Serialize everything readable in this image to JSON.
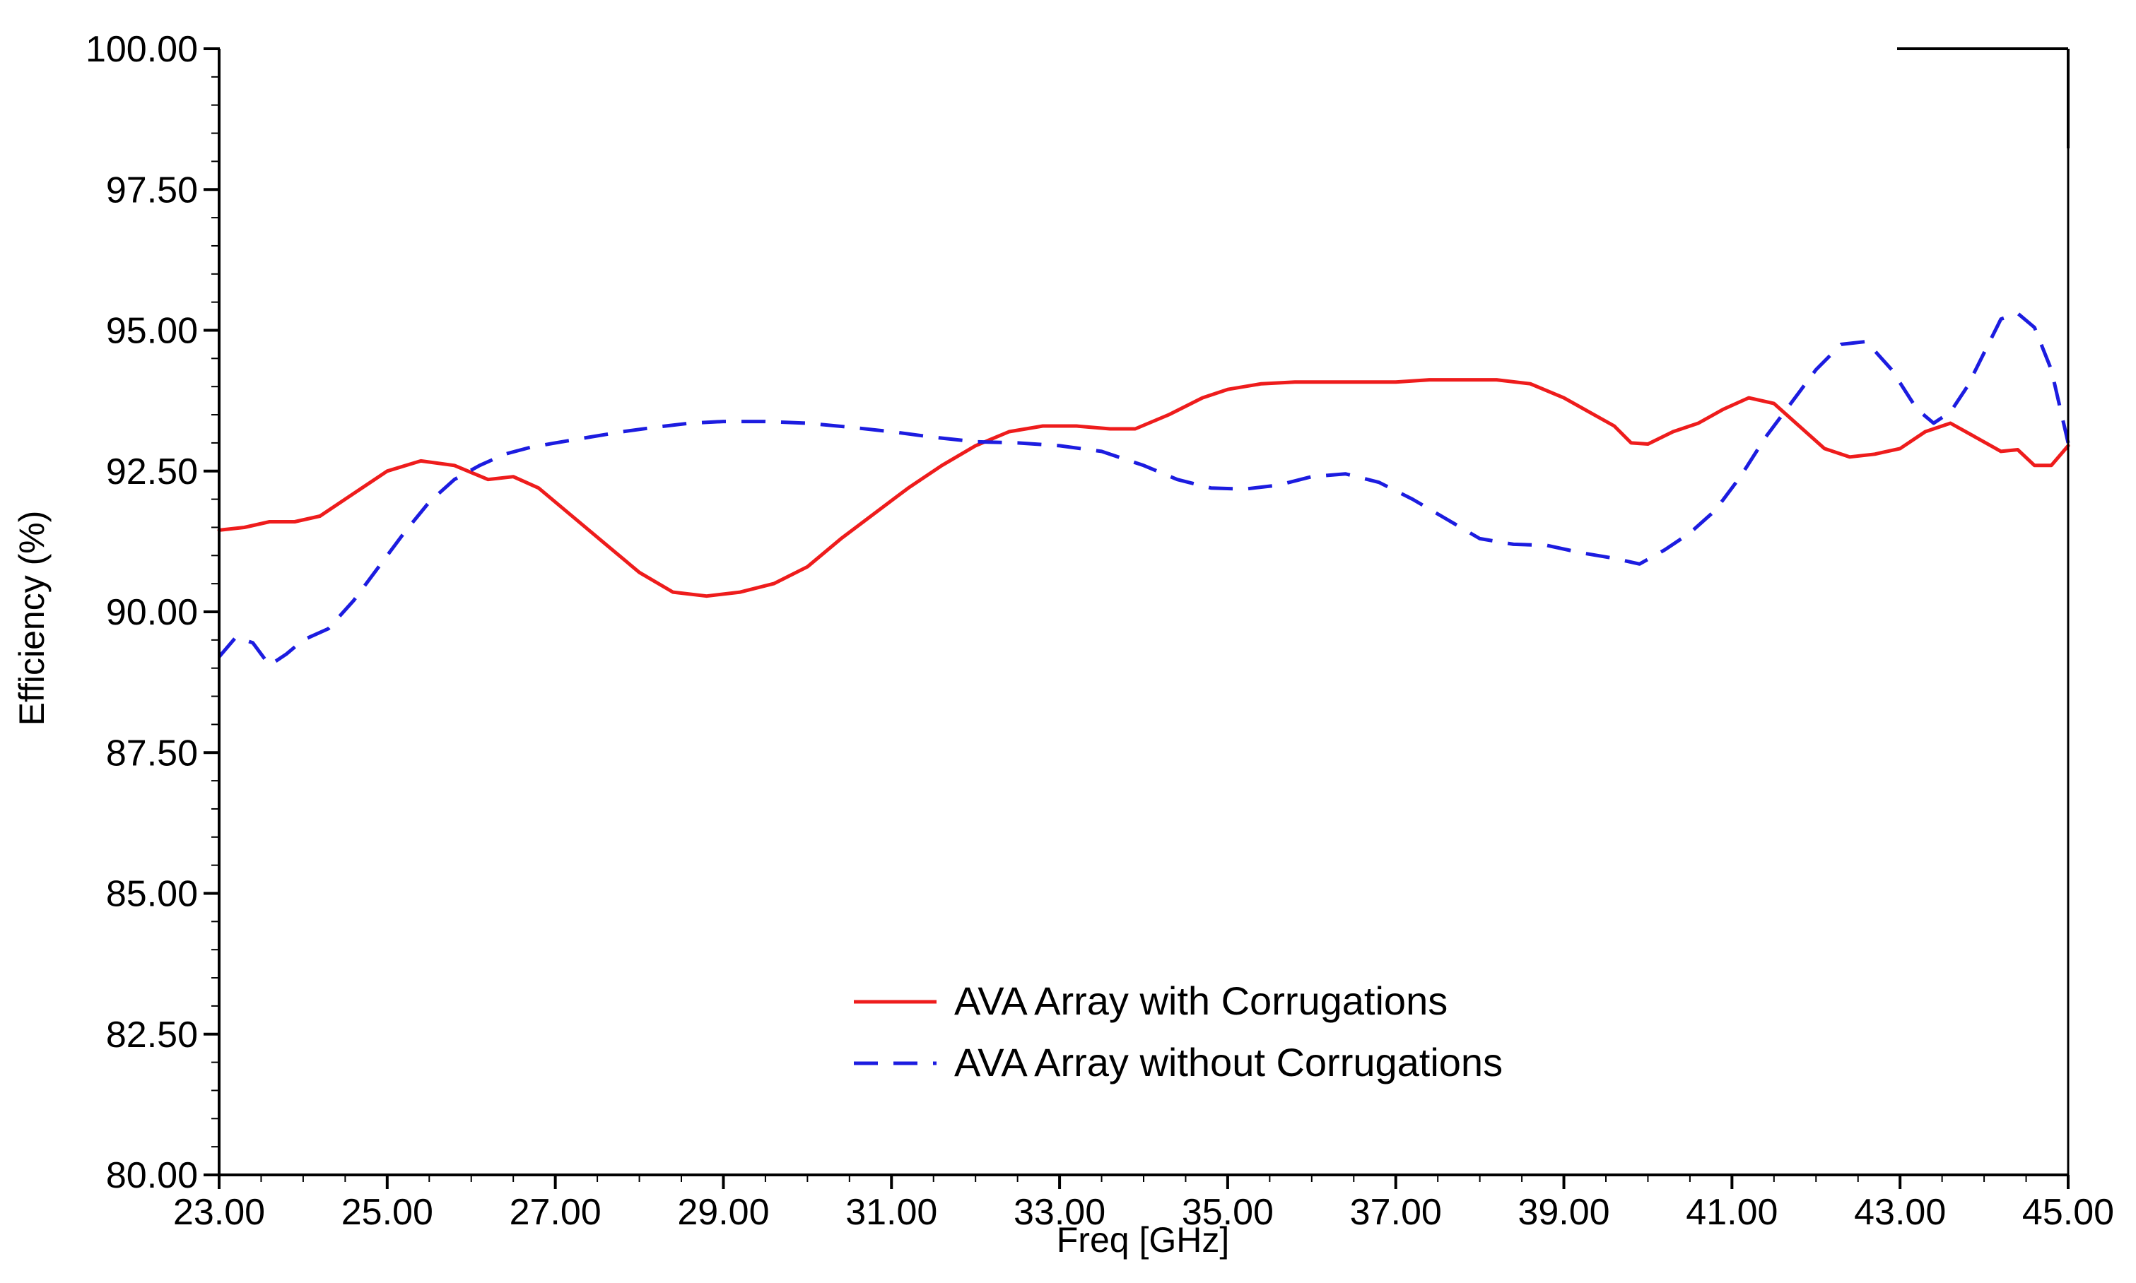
{
  "chart_data": {
    "type": "line",
    "title": "",
    "xlabel": "Freq [GHz]",
    "ylabel": "Efficiency (%)",
    "xlim": [
      23.0,
      45.0
    ],
    "ylim": [
      80.0,
      100.0
    ],
    "xticks": [
      23,
      25,
      27,
      29,
      31,
      33,
      35,
      37,
      39,
      41,
      43,
      45
    ],
    "yticks": [
      80,
      82.5,
      85,
      87.5,
      90,
      92.5,
      95,
      97.5,
      100
    ],
    "xtick_labels": [
      "23.00",
      "25.00",
      "27.00",
      "29.00",
      "31.00",
      "33.00",
      "35.00",
      "37.00",
      "39.00",
      "41.00",
      "43.00",
      "45.00"
    ],
    "ytick_labels": [
      "80.00",
      "82.50",
      "85.00",
      "87.50",
      "90.00",
      "92.50",
      "95.00",
      "97.50",
      "100.00"
    ],
    "grid": false,
    "legend_position": "bottom-center",
    "series": [
      {
        "name": "AVA Array with Corrugations",
        "color": "#ee1c1c",
        "dash": "solid",
        "x": [
          23.0,
          23.3,
          23.6,
          23.9,
          24.2,
          24.6,
          25.0,
          25.4,
          25.8,
          26.2,
          26.5,
          26.8,
          27.2,
          27.6,
          28.0,
          28.4,
          28.8,
          29.2,
          29.6,
          30.0,
          30.4,
          30.8,
          31.2,
          31.6,
          32.0,
          32.4,
          32.8,
          33.2,
          33.6,
          33.9,
          34.3,
          34.7,
          35.0,
          35.4,
          35.8,
          36.2,
          36.6,
          37.0,
          37.4,
          37.8,
          38.2,
          38.6,
          39.0,
          39.3,
          39.6,
          39.8,
          40.0,
          40.3,
          40.6,
          40.9,
          41.2,
          41.5,
          41.8,
          42.1,
          42.4,
          42.7,
          43.0,
          43.3,
          43.6,
          43.9,
          44.2,
          44.4,
          44.6,
          44.8,
          45.0
        ],
        "values": [
          91.45,
          91.5,
          91.6,
          91.6,
          91.7,
          92.1,
          92.5,
          92.68,
          92.6,
          92.35,
          92.4,
          92.2,
          91.7,
          91.2,
          90.7,
          90.35,
          90.28,
          90.35,
          90.5,
          90.8,
          91.3,
          91.75,
          92.2,
          92.6,
          92.95,
          93.2,
          93.3,
          93.3,
          93.25,
          93.25,
          93.5,
          93.8,
          93.95,
          94.05,
          94.08,
          94.08,
          94.08,
          94.08,
          94.12,
          94.12,
          94.12,
          94.05,
          93.8,
          93.55,
          93.3,
          93.0,
          92.98,
          93.2,
          93.35,
          93.6,
          93.8,
          93.7,
          93.3,
          92.9,
          92.75,
          92.8,
          92.9,
          93.2,
          93.35,
          93.1,
          92.85,
          92.88,
          92.6,
          92.6,
          92.95
        ]
      },
      {
        "name": "AVA Array without Corrugations",
        "color": "#1c1ce0",
        "dash": "dashed",
        "x": [
          23.0,
          23.2,
          23.4,
          23.6,
          23.8,
          24.0,
          24.3,
          24.6,
          24.9,
          25.2,
          25.5,
          25.8,
          26.1,
          26.4,
          26.7,
          27.0,
          27.4,
          27.8,
          28.2,
          28.6,
          29.0,
          29.5,
          30.0,
          30.5,
          31.0,
          31.5,
          32.0,
          32.5,
          33.0,
          33.5,
          34.0,
          34.4,
          34.8,
          35.2,
          35.6,
          36.0,
          36.4,
          36.8,
          37.2,
          37.6,
          38.0,
          38.4,
          38.8,
          39.2,
          39.6,
          39.9,
          40.2,
          40.5,
          40.8,
          41.1,
          41.4,
          41.7,
          42.0,
          42.3,
          42.6,
          42.9,
          43.2,
          43.4,
          43.6,
          43.8,
          44.0,
          44.2,
          44.4,
          44.6,
          44.8,
          45.0
        ],
        "values": [
          89.2,
          89.55,
          89.45,
          89.05,
          89.25,
          89.5,
          89.7,
          90.2,
          90.8,
          91.4,
          91.95,
          92.35,
          92.6,
          92.8,
          92.92,
          93.0,
          93.1,
          93.2,
          93.28,
          93.35,
          93.38,
          93.38,
          93.35,
          93.28,
          93.2,
          93.1,
          93.02,
          93.0,
          92.95,
          92.85,
          92.6,
          92.35,
          92.2,
          92.18,
          92.25,
          92.4,
          92.45,
          92.3,
          92.0,
          91.65,
          91.3,
          91.2,
          91.18,
          91.05,
          90.95,
          90.85,
          91.1,
          91.4,
          91.8,
          92.4,
          93.1,
          93.7,
          94.3,
          94.75,
          94.8,
          94.3,
          93.6,
          93.35,
          93.55,
          94.0,
          94.6,
          95.2,
          95.3,
          95.05,
          94.3,
          93.0
        ]
      }
    ]
  }
}
